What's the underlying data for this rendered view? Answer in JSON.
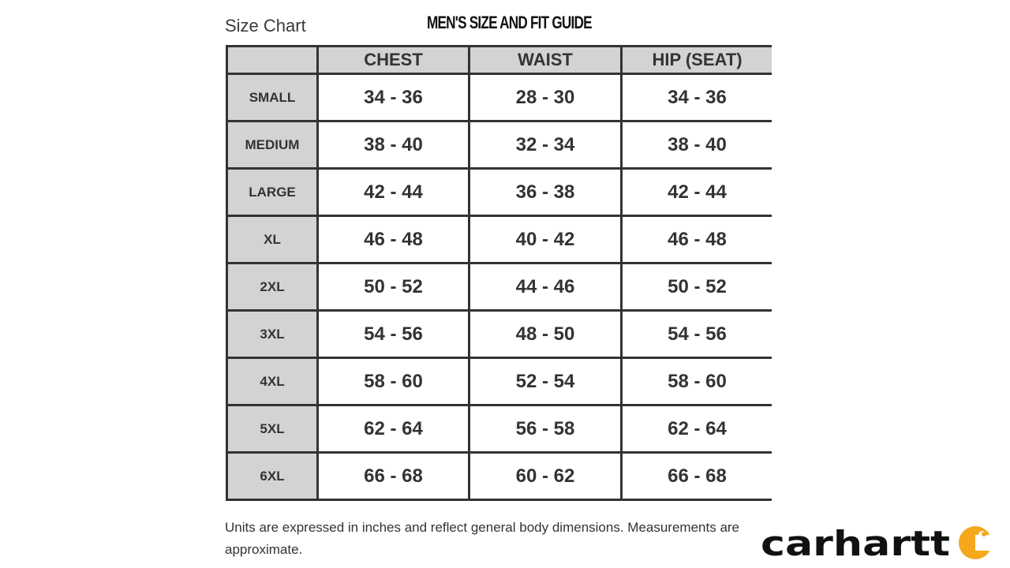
{
  "header": {
    "title": "Size Chart",
    "guide_title": "MEN'S SIZE AND FIT GUIDE"
  },
  "table": {
    "columns": [
      "",
      "CHEST",
      "WAIST",
      "HIP (SEAT)"
    ],
    "rows": [
      {
        "size": "SMALL",
        "chest": "34 - 36",
        "waist": "28 - 30",
        "hip": "34 - 36"
      },
      {
        "size": "MEDIUM",
        "chest": "38 - 40",
        "waist": "32 - 34",
        "hip": "38 - 40"
      },
      {
        "size": "LARGE",
        "chest": "42 - 44",
        "waist": "36 - 38",
        "hip": "42 - 44"
      },
      {
        "size": "XL",
        "chest": "46 - 48",
        "waist": "40 - 42",
        "hip": "46 - 48"
      },
      {
        "size": "2XL",
        "chest": "50 - 52",
        "waist": "44 - 46",
        "hip": "50 - 52"
      },
      {
        "size": "3XL",
        "chest": "54 - 56",
        "waist": "48 - 50",
        "hip": "54 - 56"
      },
      {
        "size": "4XL",
        "chest": "58 - 60",
        "waist": "52 - 54",
        "hip": "58 - 60"
      },
      {
        "size": "5XL",
        "chest": "62 - 64",
        "waist": "56 - 58",
        "hip": "62 - 64"
      },
      {
        "size": "6XL",
        "chest": "66 - 68",
        "waist": "60 - 62",
        "hip": "66 - 68"
      }
    ]
  },
  "footer": {
    "note": "Units are expressed in inches and reflect general body dimensions. Measurements are approximate."
  },
  "logo": {
    "text": "carhartt",
    "accent_color": "#f5a81c"
  }
}
